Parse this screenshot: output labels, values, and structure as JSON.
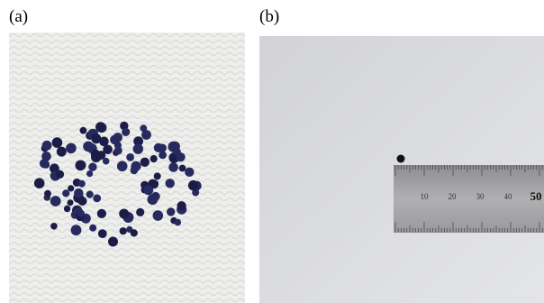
{
  "panels": [
    {
      "label": "(a)"
    },
    {
      "label": "(b)",
      "ruler_labels": [
        "10",
        "20",
        "30",
        "40",
        "50"
      ]
    }
  ]
}
